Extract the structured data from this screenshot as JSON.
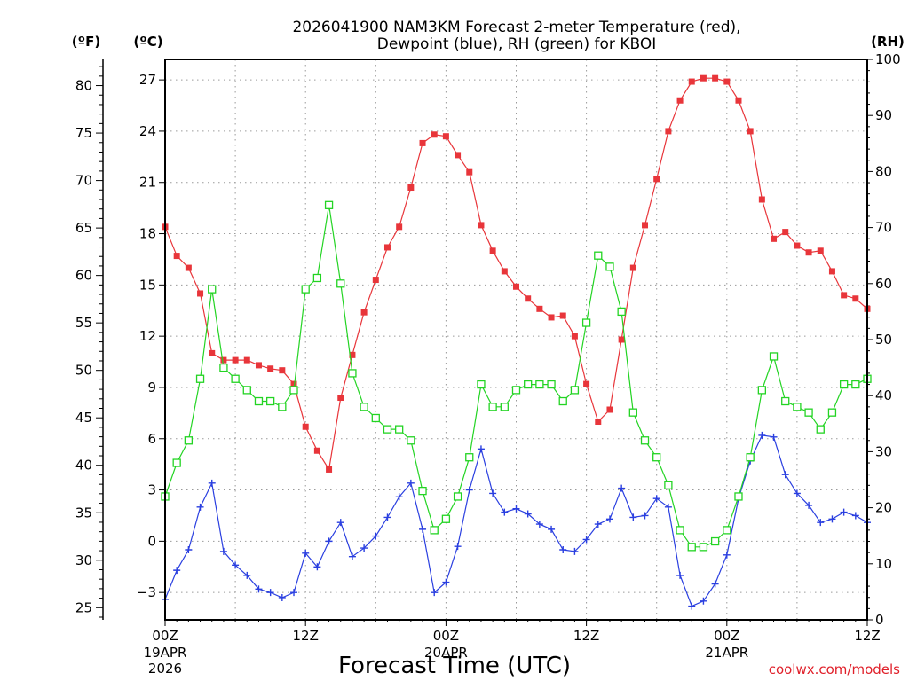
{
  "chart_data": {
    "type": "line",
    "title_lines": [
      "2026041900 NAM3KM Forecast 2-meter Temperature (red),",
      "Dewpoint (blue), RH (green) for KBOI"
    ],
    "units": {
      "fahrenheit": "(ºF)",
      "celsius": "(ºC)",
      "rh": "(RH)"
    },
    "xlabel": "Forecast Time (UTC)",
    "credit": "coolwx.com/models",
    "x_range_hours": [
      0,
      60
    ],
    "x_ticks": [
      {
        "hour": 0,
        "label": "00Z",
        "sub1": "19APR",
        "sub2": "2026"
      },
      {
        "hour": 12,
        "label": "12Z",
        "sub1": "",
        "sub2": ""
      },
      {
        "hour": 24,
        "label": "00Z",
        "sub1": "20APR",
        "sub2": ""
      },
      {
        "hour": 36,
        "label": "12Z",
        "sub1": "",
        "sub2": ""
      },
      {
        "hour": 48,
        "label": "00Z",
        "sub1": "21APR",
        "sub2": ""
      },
      {
        "hour": 60,
        "label": "12Z",
        "sub1": "",
        "sub2": ""
      }
    ],
    "celsius_range": [
      -4.6,
      28.2
    ],
    "celsius_ticks": [
      -3,
      0,
      3,
      6,
      9,
      12,
      15,
      18,
      21,
      24,
      27
    ],
    "celsius_tick_labels": [
      "−3",
      "0",
      "3",
      "6",
      "9",
      "12",
      "15",
      "18",
      "21",
      "24",
      "27"
    ],
    "fahrenheit_ticks": [
      25,
      30,
      35,
      40,
      45,
      50,
      55,
      60,
      65,
      70,
      75,
      80
    ],
    "rh_range": [
      0,
      100
    ],
    "rh_ticks": [
      0,
      10,
      20,
      30,
      40,
      50,
      60,
      70,
      80,
      90,
      100
    ],
    "series": [
      {
        "name": "2-meter Temperature",
        "unit": "°C",
        "color": "#e8353a",
        "marker": "filled-square",
        "values": [
          18.4,
          16.7,
          16.0,
          14.5,
          11.0,
          10.6,
          10.6,
          10.6,
          10.3,
          10.1,
          10.0,
          9.2,
          6.7,
          5.3,
          4.2,
          8.4,
          10.9,
          13.4,
          15.3,
          17.2,
          18.4,
          20.7,
          23.3,
          23.8,
          23.7,
          22.6,
          21.6,
          18.5,
          17.0,
          15.8,
          14.9,
          14.2,
          13.6,
          13.1,
          13.2,
          12.0,
          9.2,
          7.0,
          7.7,
          11.8,
          16.0,
          18.5,
          21.2,
          24.0,
          25.8,
          26.9,
          27.1,
          27.1,
          26.9,
          25.8,
          24.0,
          20.0,
          17.7,
          18.1,
          17.3,
          16.9,
          17.0,
          15.8,
          14.4,
          14.2,
          13.6
        ]
      },
      {
        "name": "Dewpoint",
        "unit": "°C",
        "color": "#2a3fe0",
        "marker": "plus",
        "values": [
          -3.4,
          -1.7,
          -0.5,
          2.0,
          3.4,
          -0.6,
          -1.4,
          -2.0,
          -2.8,
          -3.0,
          -3.3,
          -3.0,
          -0.7,
          -1.5,
          0.0,
          1.1,
          -0.9,
          -0.4,
          0.3,
          1.4,
          2.6,
          3.4,
          0.7,
          -3.0,
          -2.4,
          -0.3,
          3.0,
          5.4,
          2.8,
          1.7,
          1.9,
          1.6,
          1.0,
          0.7,
          -0.5,
          -0.6,
          0.1,
          1.0,
          1.3,
          3.1,
          1.4,
          1.5,
          2.5,
          2.0,
          -2.0,
          -3.8,
          -3.5,
          -2.5,
          -0.8,
          2.5,
          4.7,
          6.2,
          6.1,
          3.9,
          2.8,
          2.1,
          1.1,
          1.3,
          1.7,
          1.5,
          1.1
        ]
      },
      {
        "name": "Relative Humidity",
        "unit": "%",
        "color": "#23d423",
        "marker": "open-square",
        "values": [
          22,
          28,
          32,
          43,
          59,
          45,
          43,
          41,
          39,
          39,
          38,
          41,
          59,
          61,
          74,
          60,
          44,
          38,
          36,
          34,
          34,
          32,
          23,
          16,
          18,
          22,
          29,
          42,
          38,
          38,
          41,
          42,
          42,
          42,
          39,
          41,
          53,
          65,
          63,
          55,
          37,
          32,
          29,
          24,
          16,
          13,
          13,
          14,
          16,
          22,
          29,
          41,
          47,
          39,
          38,
          37,
          34,
          37,
          42,
          42,
          43
        ]
      }
    ]
  }
}
